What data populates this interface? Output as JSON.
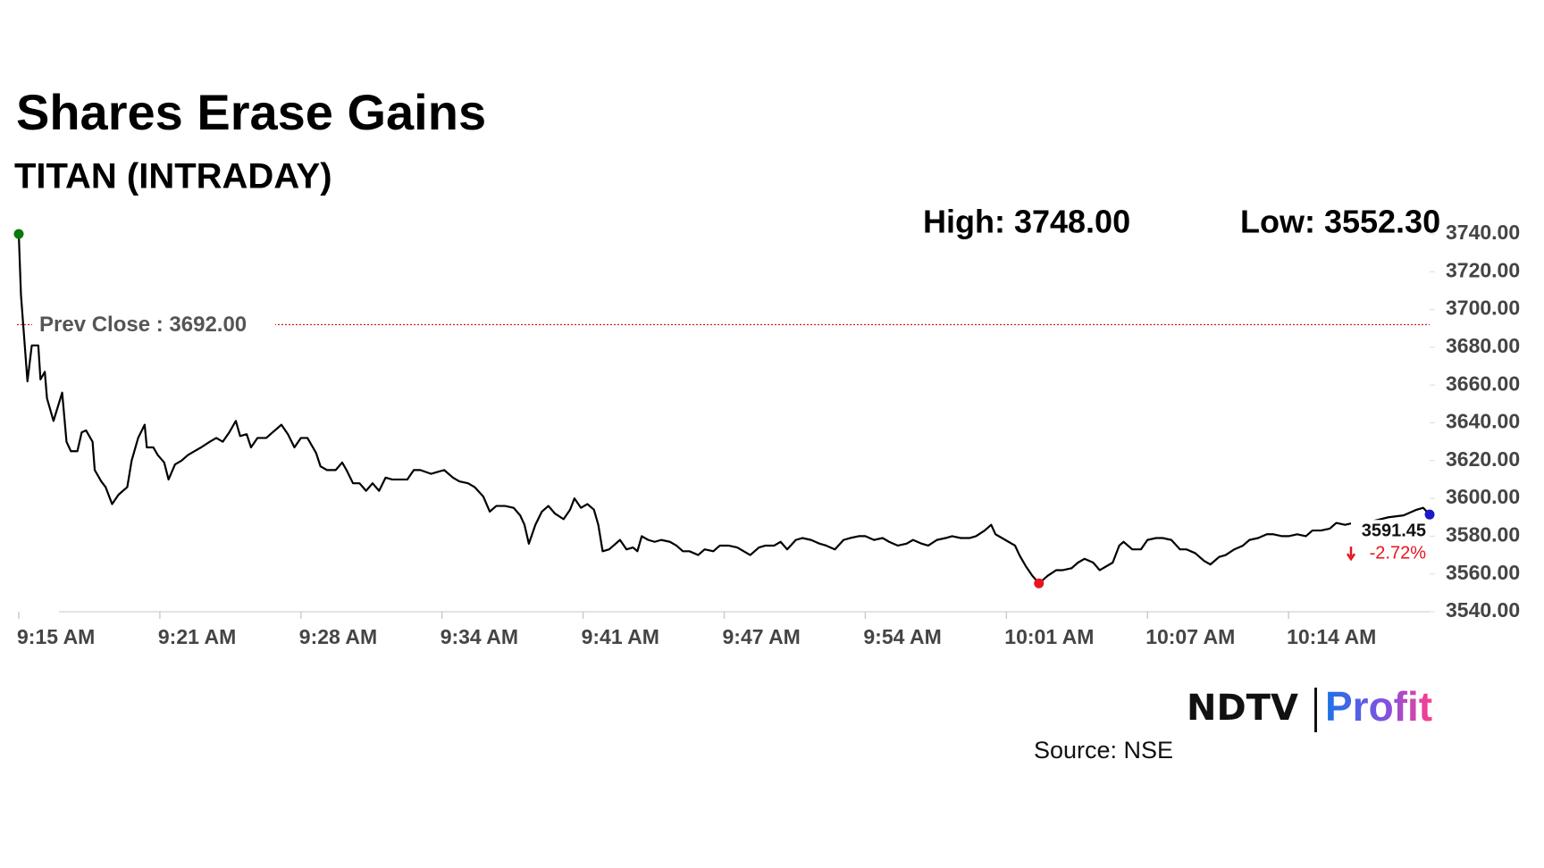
{
  "chart_data": {
    "type": "line",
    "title": "Shares Erase Gains",
    "subtitle": "TITAN (INTRADAY)",
    "high_label": "High: 3748.00",
    "low_label": "Low: 3552.30",
    "prev_close": {
      "value": 3692,
      "label": "Prev Close : 3692.00"
    },
    "change_label": "-2.72%",
    "source": "Source: NSE",
    "logo": {
      "left": "NDTV",
      "right": "Profit"
    },
    "x": [
      0,
      0.1,
      0.4,
      0.6,
      0.9,
      1.0,
      1.2,
      1.3,
      1.6,
      2.0,
      2.2,
      2.4,
      2.7,
      2.9,
      3.1,
      3.4,
      3.5,
      3.8,
      4.0,
      4.3,
      4.6,
      5.0,
      5.2,
      5.5,
      5.8,
      5.9,
      6.2,
      6.4,
      6.7,
      6.9,
      7.2,
      7.5,
      7.8,
      8.1,
      8.4,
      8.8,
      9.1,
      9.4,
      9.7,
      10.0,
      10.2,
      10.5,
      10.7,
      11.0,
      11.4,
      11.7,
      12.1,
      12.4,
      12.7,
      13.0,
      13.3,
      13.7,
      13.9,
      14.2,
      14.6,
      14.9,
      15.1,
      15.4,
      15.7,
      16.0,
      16.3,
      16.6,
      16.9,
      17.2,
      17.5,
      17.9,
      18.2,
      18.5,
      19.0,
      19.3,
      19.6,
      20.0,
      20.3,
      20.7,
      21.0,
      21.4,
      21.7,
      22.0,
      22.4,
      22.8,
      23.1,
      23.3,
      23.5,
      23.8,
      24.1,
      24.4,
      24.7,
      25.1,
      25.4,
      25.6,
      25.9,
      26.2,
      26.5,
      26.7,
      26.9,
      27.2,
      27.4,
      27.7,
      28.0,
      28.3,
      28.5,
      28.7,
      29.0,
      29.3,
      29.6,
      30.0,
      30.3,
      30.6,
      30.9,
      31.3,
      31.6,
      32.0,
      32.3,
      32.7,
      33.1,
      33.4,
      33.7,
      34.1,
      34.4,
      34.8,
      35.1,
      35.4,
      35.8,
      36.1,
      36.5,
      36.9,
      37.2,
      37.6,
      38.0,
      38.3,
      38.7,
      39.0,
      39.4,
      39.8,
      40.1,
      40.5,
      40.9,
      41.2,
      41.6,
      41.9,
      42.3,
      42.7,
      43.0,
      43.4,
      43.8,
      44.1,
      44.5,
      44.8,
      45.0,
      45.3,
      45.6,
      45.9,
      46.1,
      46.4,
      46.7,
      47.0,
      47.4,
      47.8,
      48.1,
      48.5,
      48.8,
      49.1,
      49.5,
      49.8,
      50.1,
      50.4,
      50.7,
      50.9,
      51.3,
      51.7,
      52.0,
      52.4,
      52.7,
      53.1,
      53.5,
      53.8,
      54.2,
      54.6,
      54.9,
      55.3,
      55.6,
      56.0,
      56.4,
      56.7,
      57.1,
      57.5,
      57.8,
      58.2,
      58.5,
      58.9,
      59.3,
      59.6,
      60.0,
      60.4,
      60.7,
      61.1,
      61.5,
      61.8,
      62.4,
      63.1,
      63.8,
      64.4,
      64.7,
      65.0
    ],
    "series": [
      {
        "name": "TITAN",
        "color": "#000000",
        "values": [
          3740,
          3708,
          3662,
          3681,
          3681,
          3663,
          3667,
          3653,
          3641,
          3656,
          3630,
          3625,
          3625,
          3635,
          3636,
          3630,
          3615,
          3609,
          3606,
          3597,
          3602,
          3606,
          3620,
          3632,
          3639,
          3627,
          3627,
          3623,
          3619,
          3610,
          3618,
          3620,
          3623,
          3625,
          3627,
          3630,
          3632,
          3630,
          3635,
          3641,
          3633,
          3634,
          3627,
          3632,
          3632,
          3635,
          3639,
          3634,
          3627,
          3632,
          3632,
          3624,
          3617,
          3615,
          3615,
          3619,
          3615,
          3608,
          3608,
          3604,
          3608,
          3604,
          3611,
          3610,
          3610,
          3610,
          3615,
          3615,
          3613,
          3614,
          3615,
          3611,
          3609,
          3608,
          3606,
          3601,
          3593,
          3596,
          3596,
          3595,
          3591,
          3586,
          3576,
          3586,
          3593,
          3596,
          3592,
          3589,
          3594,
          3600,
          3595,
          3597,
          3594,
          3586,
          3572,
          3573,
          3575,
          3578,
          3573,
          3574,
          3572,
          3580,
          3578,
          3577,
          3578,
          3577,
          3575,
          3572,
          3572,
          3570,
          3573,
          3572,
          3575,
          3575,
          3574,
          3572,
          3570,
          3574,
          3575,
          3575,
          3577,
          3573,
          3578,
          3579,
          3578,
          3576,
          3575,
          3573,
          3578,
          3579,
          3580,
          3580,
          3578,
          3579,
          3577,
          3575,
          3576,
          3578,
          3576,
          3575,
          3578,
          3579,
          3580,
          3579,
          3579,
          3580,
          3583,
          3586,
          3581,
          3579,
          3577,
          3575,
          3570,
          3564,
          3559,
          3555,
          3559,
          3562,
          3562,
          3563,
          3566,
          3568,
          3566,
          3562,
          3564,
          3566,
          3575,
          3577,
          3573,
          3573,
          3578,
          3579,
          3579,
          3578,
          3573,
          3573,
          3571,
          3567,
          3565,
          3569,
          3570,
          3573,
          3575,
          3578,
          3579,
          3581,
          3581,
          3580,
          3580,
          3581,
          3580,
          3583,
          3583,
          3584,
          3587,
          3586,
          3587,
          3587,
          3588,
          3590,
          3591,
          3594,
          3595,
          3591.45
        ]
      }
    ],
    "start_color": "#0a7a0a",
    "low_color": "#e8141c",
    "end_color": "#1a1ac8",
    "prev_close_color": "#d42020",
    "xlim": [
      0,
      65
    ],
    "xticks": [
      {
        "value": 0,
        "label": "9:15 AM"
      },
      {
        "value": 6.5,
        "label": "9:21 AM"
      },
      {
        "value": 13,
        "label": "9:28 AM"
      },
      {
        "value": 19.5,
        "label": "9:34 AM"
      },
      {
        "value": 26,
        "label": "9:41 AM"
      },
      {
        "value": 32.5,
        "label": "9:47 AM"
      },
      {
        "value": 39,
        "label": "9:54 AM"
      },
      {
        "value": 45.5,
        "label": "10:01 AM"
      },
      {
        "value": 52,
        "label": "10:07 AM"
      },
      {
        "value": 58.5,
        "label": "10:14 AM"
      }
    ],
    "ylim": [
      3540,
      3740
    ],
    "yticks": [
      {
        "value": 3540,
        "label": "3540.00"
      },
      {
        "value": 3560,
        "label": "3560.00"
      },
      {
        "value": 3580,
        "label": "3580.00"
      },
      {
        "value": 3600,
        "label": "3600.00"
      },
      {
        "value": 3620,
        "label": "3620.00"
      },
      {
        "value": 3640,
        "label": "3640.00"
      },
      {
        "value": 3660,
        "label": "3660.00"
      },
      {
        "value": 3680,
        "label": "3680.00"
      },
      {
        "value": 3700,
        "label": "3700.00"
      },
      {
        "value": 3720,
        "label": "3720.00"
      },
      {
        "value": 3740,
        "label": "3740.00"
      }
    ],
    "grid": false
  }
}
